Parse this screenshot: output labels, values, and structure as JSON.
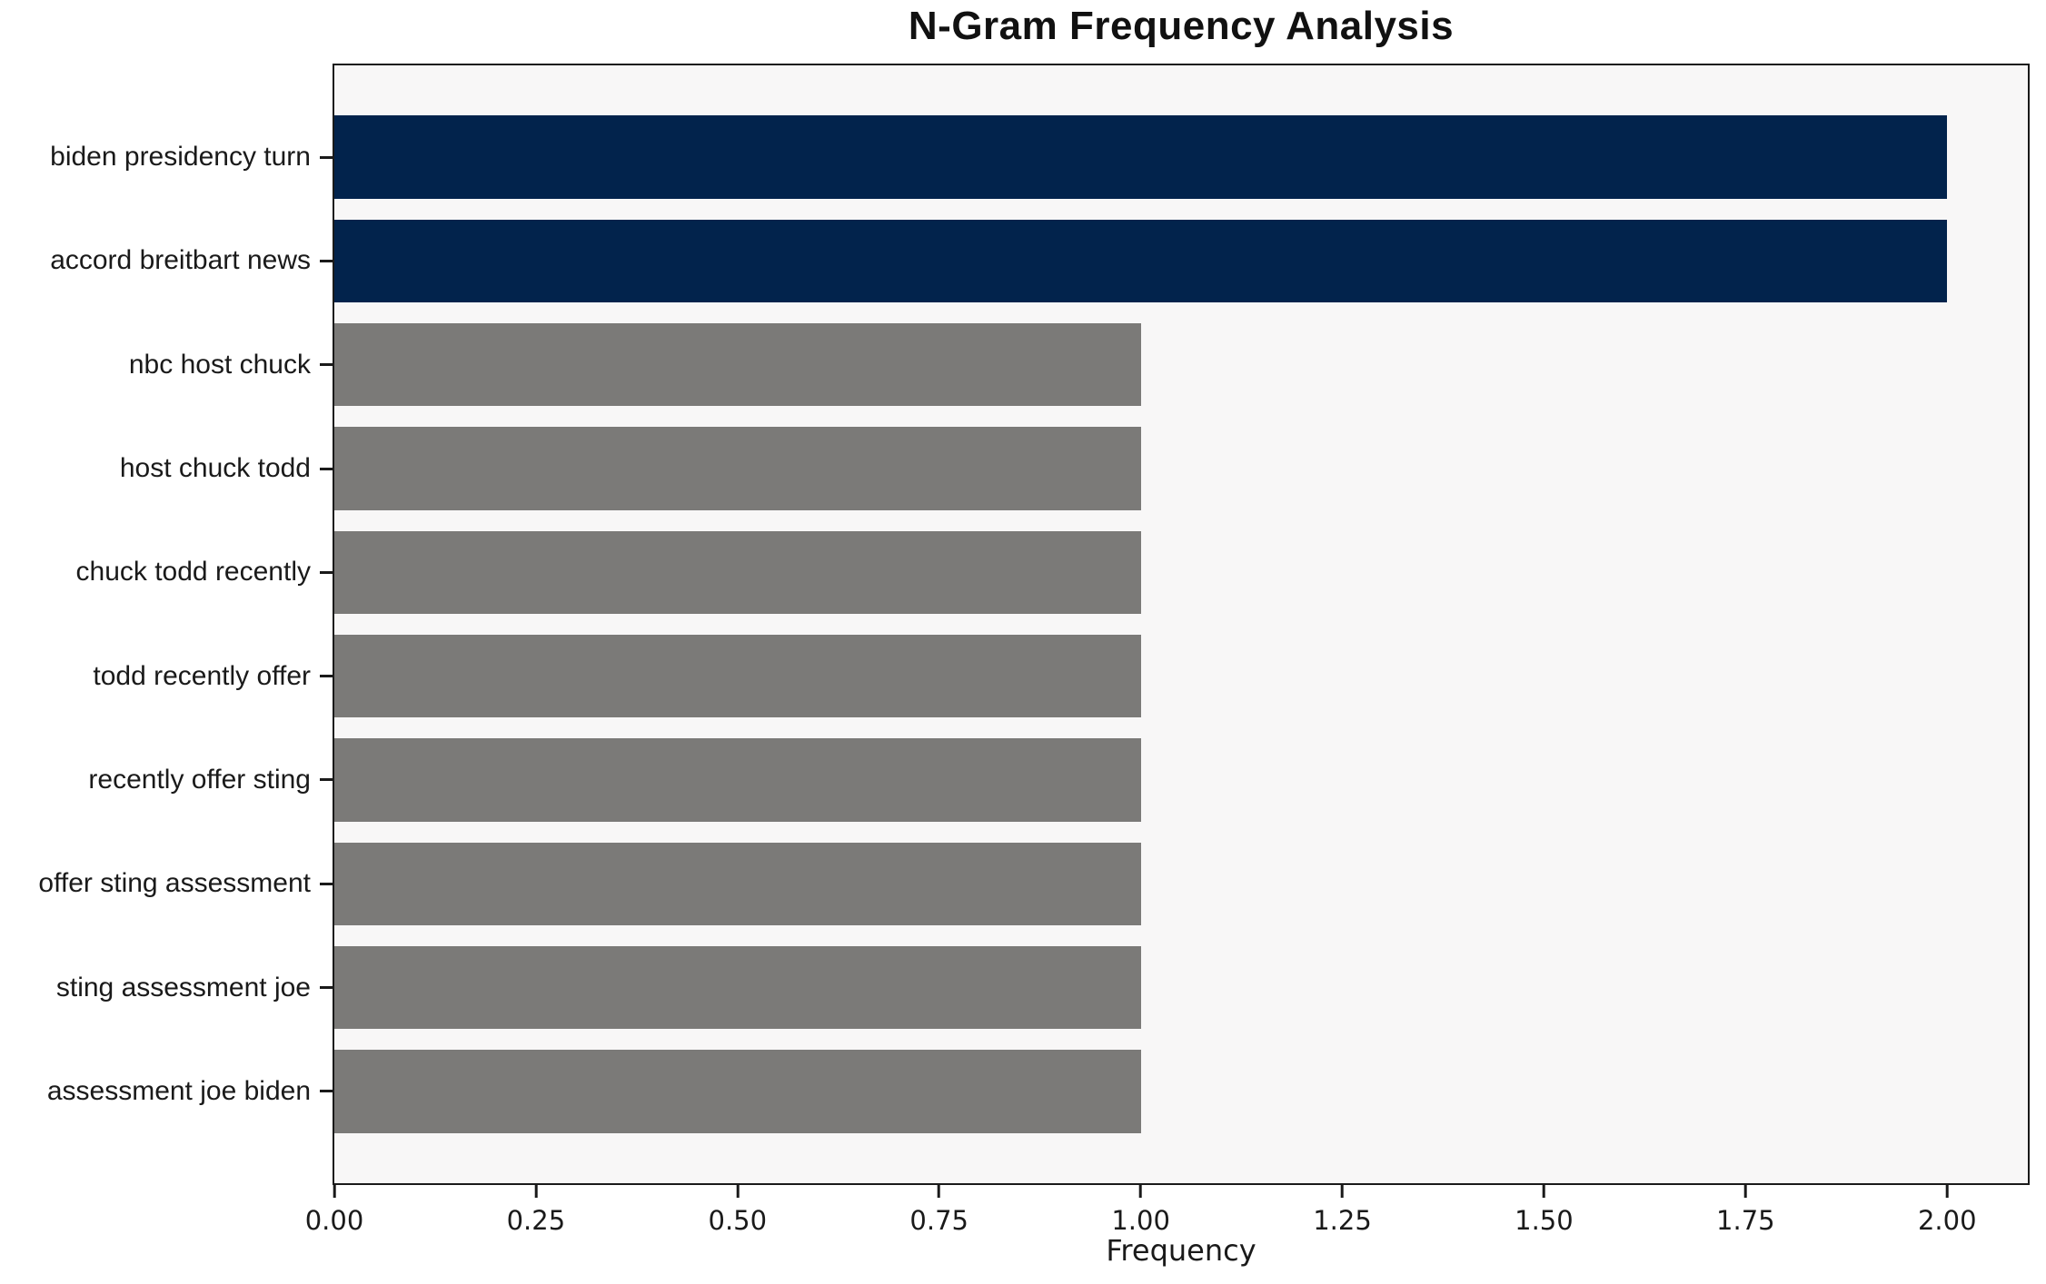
{
  "chart_data": {
    "type": "bar",
    "orientation": "horizontal",
    "title": "N-Gram Frequency Analysis",
    "xlabel": "Frequency",
    "ylabel": "",
    "categories": [
      "biden presidency turn",
      "accord breitbart news",
      "nbc host chuck",
      "host chuck todd",
      "chuck todd recently",
      "todd recently offer",
      "recently offer sting",
      "offer sting assessment",
      "sting assessment joe",
      "assessment joe biden"
    ],
    "values": [
      2,
      2,
      1,
      1,
      1,
      1,
      1,
      1,
      1,
      1
    ],
    "bar_colors": [
      "#02234c",
      "#02234c",
      "#7b7a78",
      "#7b7a78",
      "#7b7a78",
      "#7b7a78",
      "#7b7a78",
      "#7b7a78",
      "#7b7a78",
      "#7b7a78"
    ],
    "xlim": [
      0,
      2.1
    ],
    "x_tick_values": [
      0,
      0.25,
      0.5,
      0.75,
      1.0,
      1.25,
      1.5,
      1.75,
      2.0
    ],
    "x_tick_labels": [
      "0.00",
      "0.25",
      "0.50",
      "0.75",
      "1.00",
      "1.25",
      "1.50",
      "1.75",
      "2.00"
    ],
    "grid": false,
    "legend_position": "none",
    "plot_background": "#f8f7f7",
    "figure_background": "#ffffff",
    "axis_color": "#1a1a1a"
  }
}
